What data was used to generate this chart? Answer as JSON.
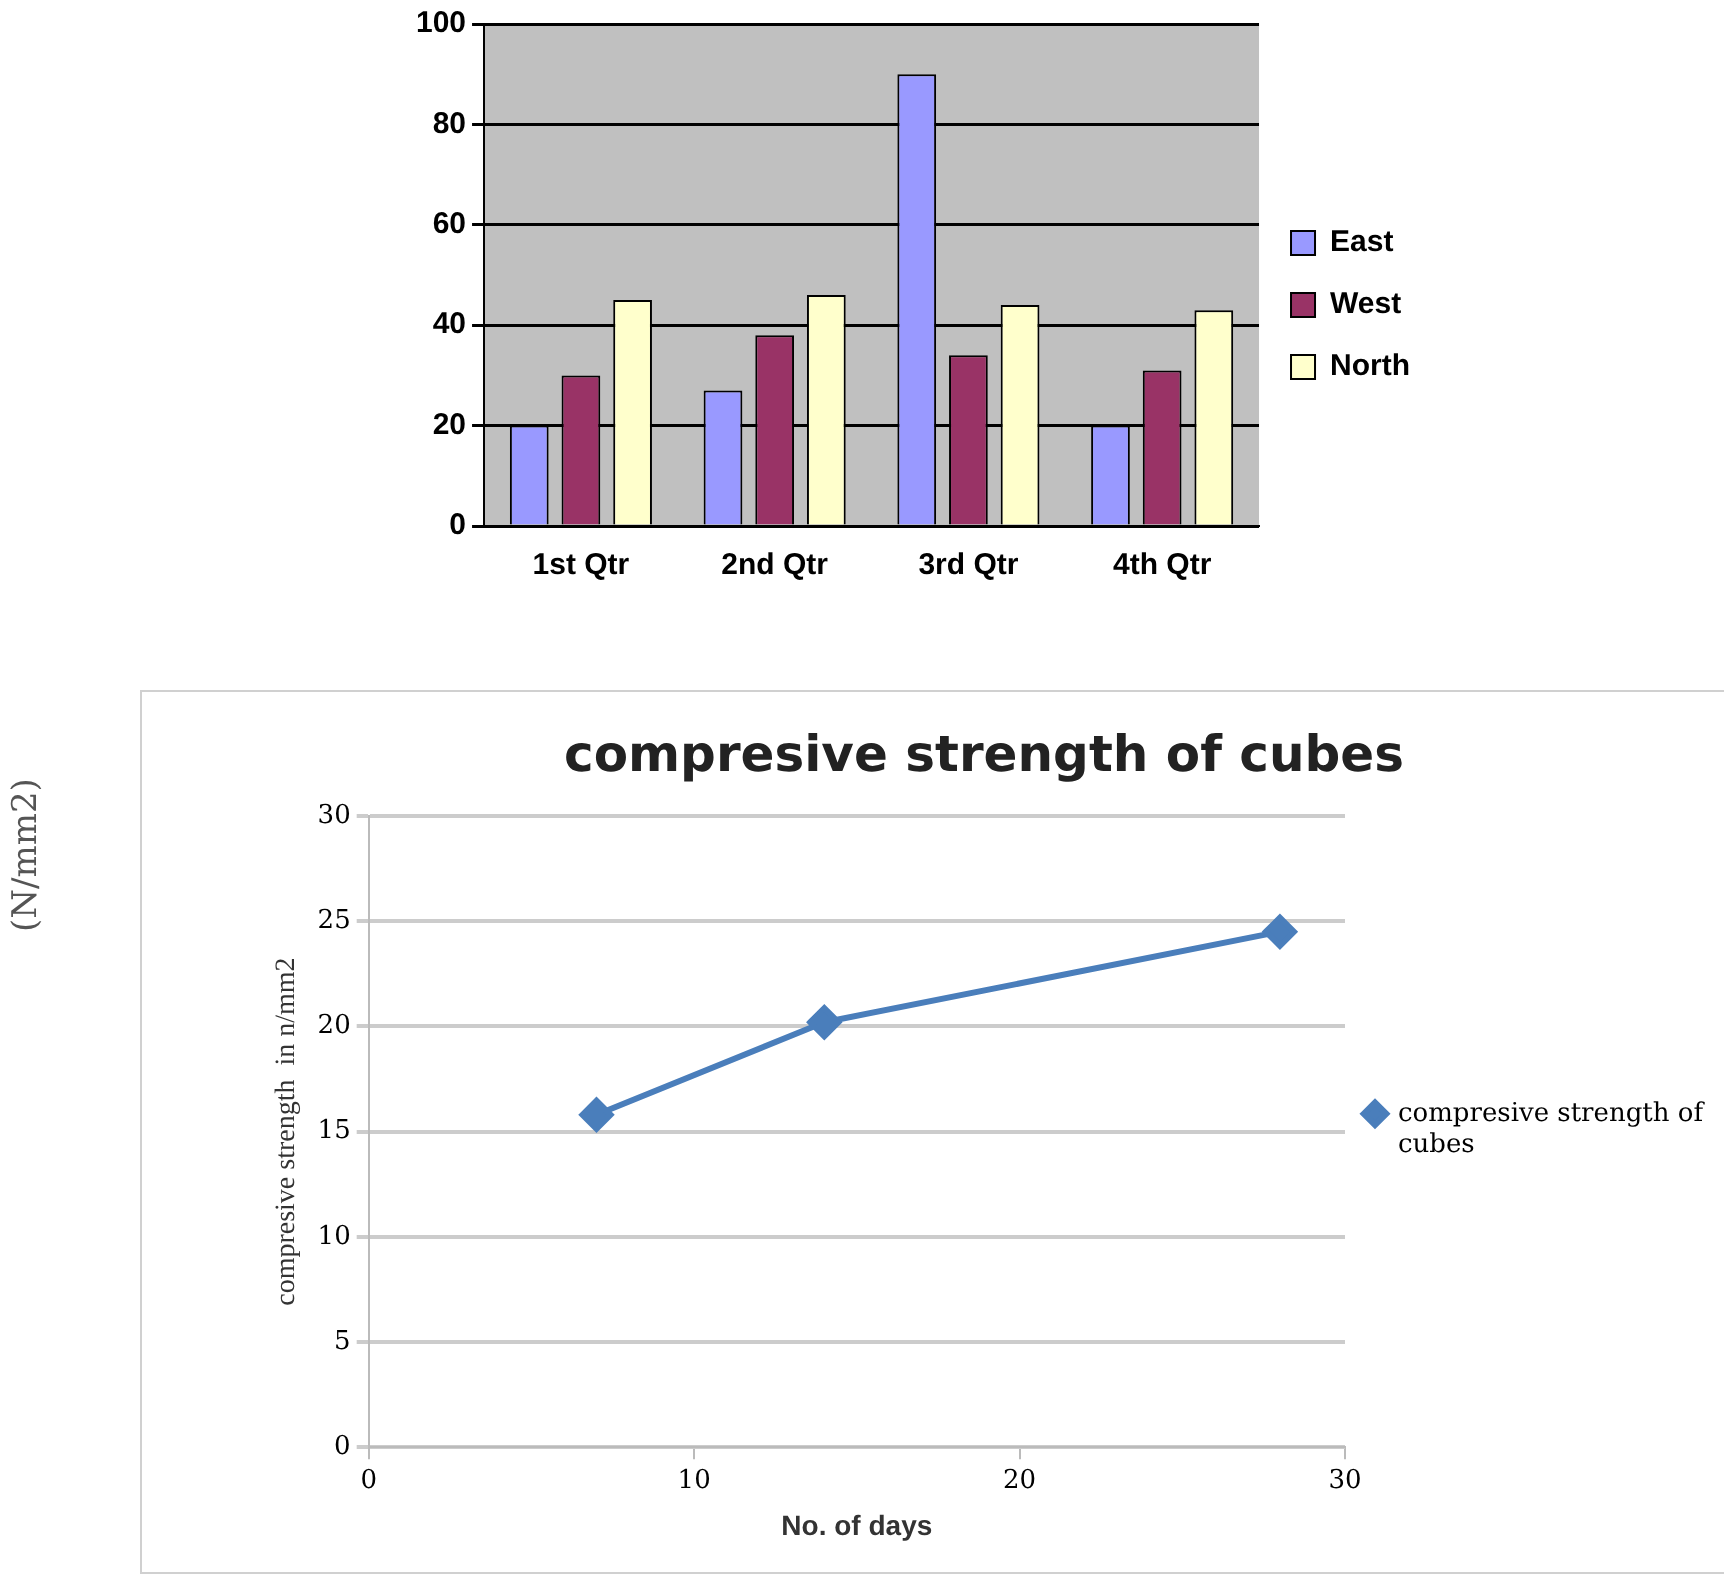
{
  "chart_data": [
    {
      "type": "bar",
      "categories": [
        "1st Qtr",
        "2nd Qtr",
        "3rd Qtr",
        "4th Qtr"
      ],
      "series": [
        {
          "name": "East",
          "color": "#9999ff",
          "values": [
            20,
            27,
            90,
            20
          ]
        },
        {
          "name": "West",
          "color": "#993366",
          "values": [
            30,
            38,
            34,
            31
          ]
        },
        {
          "name": "North",
          "color": "#ffffcc",
          "values": [
            45,
            46,
            44,
            43
          ]
        }
      ],
      "ylim": [
        0,
        100
      ],
      "yticks": [
        0,
        20,
        40,
        60,
        80,
        100
      ],
      "grid": "y",
      "legend": "right"
    },
    {
      "type": "line",
      "title": "compresive strength of cubes",
      "xlabel": "No. of days",
      "ylabel": "compresive strength  in n/mm2",
      "annotations": [
        "(N/mm2)"
      ],
      "x": [
        7,
        14,
        28
      ],
      "series": [
        {
          "name": "compresive strength of cubes",
          "color": "#4a7ebb",
          "values": [
            15.8,
            20.2,
            24.5
          ]
        }
      ],
      "xlim": [
        0,
        30
      ],
      "xticks": [
        0,
        10,
        20,
        30
      ],
      "ylim": [
        0,
        30
      ],
      "yticks": [
        0,
        5,
        10,
        15,
        20,
        25,
        30
      ],
      "grid": "y",
      "legend": "right",
      "marker": "diamond",
      "line_style": "solid"
    }
  ]
}
